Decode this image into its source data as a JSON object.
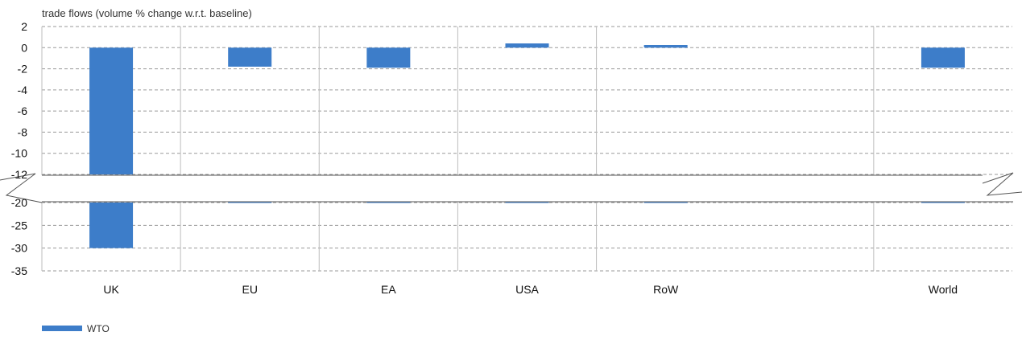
{
  "chart_data": {
    "type": "bar",
    "ylabel": "trade flows (volume % change w.r.t. baseline)",
    "categories": [
      "UK",
      "EU",
      "EA",
      "USA",
      "RoW",
      "",
      "World"
    ],
    "series": [
      {
        "name": "WTO",
        "color": "#3d7dc9",
        "values": [
          -30,
          -1.8,
          -1.9,
          0.4,
          0.25,
          null,
          -1.9
        ]
      }
    ],
    "broken_axis": {
      "upper_segment": {
        "ylim": [
          -12,
          2
        ],
        "ticks": [
          2,
          0,
          -2,
          -4,
          -6,
          -8,
          -10,
          -12
        ]
      },
      "lower_segment": {
        "ylim": [
          -35,
          -20
        ],
        "ticks": [
          -20,
          -25,
          -30,
          -35
        ]
      }
    },
    "grid": true,
    "legend_position": "bottom-left"
  }
}
